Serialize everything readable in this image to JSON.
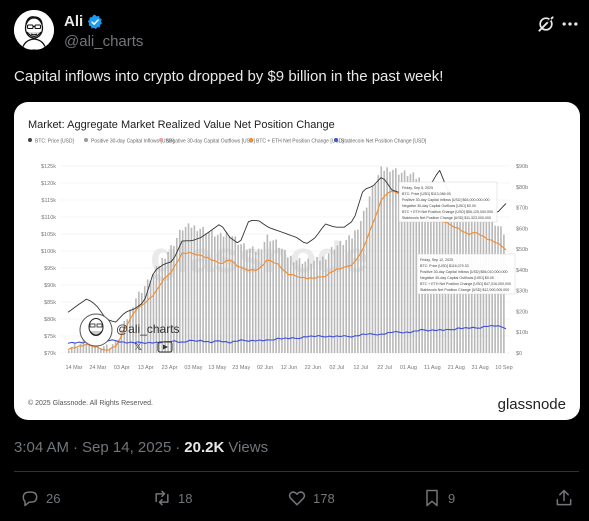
{
  "author": {
    "display_name": "Ali",
    "handle": "@ali_charts"
  },
  "tweet": {
    "text": "Capital inflows into crypto dropped by $9 billion in the past week!",
    "time": "3:04 AM",
    "date": "Sep 14, 2025",
    "views_count": "20.2K",
    "views_label": "Views"
  },
  "actions": {
    "replies": "26",
    "reposts": "18",
    "likes": "178",
    "bookmarks": "9"
  },
  "card": {
    "watermark_logo": "glassnode",
    "overlay_handle": "@ali_charts",
    "copyright": "© 2025 Glassnode. All Rights Reserved.",
    "brand": "glassnode"
  },
  "chart_data": {
    "type": "line",
    "title": "Market: Aggregate Market Realized Value Net Position Change",
    "legend": [
      {
        "label": "BTC: Price [USD]",
        "color": "#444444"
      },
      {
        "label": "Positive 30-day Capital Inflows [USD]",
        "color": "#9a9a9a"
      },
      {
        "label": "Negative 30-day Capital Outflows [USD]",
        "color": "#e8a0a0"
      },
      {
        "label": "BTC + ETH Net Position Change [USD]",
        "color": "#f58a2c"
      },
      {
        "label": "Stablecoin Net Position Change [USD]",
        "color": "#3f4fd8"
      }
    ],
    "x_ticks": [
      "14 Mar",
      "24 Mar",
      "03 Apr",
      "13 Apr",
      "23 Apr",
      "03 May",
      "13 May",
      "23 May",
      "02 Jun",
      "12 Jun",
      "22 Jun",
      "02 Jul",
      "12 Jul",
      "22 Jul",
      "01 Aug",
      "11 Aug",
      "21 Aug",
      "31 Aug",
      "10 Sep"
    ],
    "y_left_ticks": [
      "$125k",
      "$120k",
      "$115k",
      "$110k",
      "$105k",
      "$100k",
      "$95k",
      "$90k",
      "$85k",
      "$80k",
      "$75k",
      "$70k"
    ],
    "y_left_lim": [
      70000,
      125000
    ],
    "y_right_ticks": [
      "$90b",
      "$80b",
      "$70b",
      "$60b",
      "$50b",
      "$40b",
      "$30b",
      "$20b",
      "$10b",
      "$0"
    ],
    "y_right_lim": [
      0,
      90
    ],
    "btc_price": [
      82,
      84,
      86,
      84,
      80,
      79,
      82,
      83,
      85,
      94,
      96,
      97,
      103,
      103,
      104,
      106,
      108,
      104,
      102,
      109,
      109,
      107,
      106,
      105,
      104,
      102,
      104,
      108,
      107,
      107,
      109,
      118,
      119,
      122,
      118,
      117,
      115,
      118,
      119,
      124,
      117,
      113,
      111,
      110,
      112,
      111,
      114
    ],
    "btc_eth_net_change": [
      2,
      3,
      4,
      3,
      1,
      3,
      12,
      20,
      24,
      28,
      35,
      40,
      48,
      48,
      47,
      45,
      43,
      45,
      41,
      40,
      40,
      45,
      43,
      38,
      37,
      36,
      36,
      37,
      40,
      41,
      43,
      50,
      62,
      75,
      78,
      76,
      74,
      70,
      68,
      64,
      62,
      60,
      57,
      58,
      55,
      53,
      50
    ],
    "positive_inflows": [
      3,
      4,
      6,
      5,
      3,
      5,
      15,
      26,
      32,
      38,
      46,
      52,
      60,
      61,
      60,
      58,
      56,
      58,
      53,
      50,
      49,
      56,
      53,
      47,
      45,
      44,
      44,
      46,
      51,
      53,
      56,
      65,
      78,
      88,
      89,
      87,
      86,
      84,
      80,
      76,
      74,
      72,
      68,
      70,
      67,
      63,
      58
    ],
    "stablecoin_net_change": [
      5,
      5,
      5,
      6,
      6,
      6,
      5,
      5,
      5,
      5,
      5,
      6,
      5,
      6,
      6,
      5,
      6,
      5,
      6,
      6,
      6,
      6,
      7,
      7,
      7,
      8,
      8,
      8,
      8,
      8,
      8,
      9,
      9,
      9,
      10,
      10,
      10,
      11,
      11,
      11,
      11,
      12,
      12,
      12,
      13,
      13,
      12
    ],
    "annotations": [
      "Friday, Sep 5, 2025",
      "BTC: Price [USD]   $113,086.93",
      "Positive 30-day Capital Inflows [USD]   $65,000,000,000",
      "Negative 30-day Capital Outflows [USD]   $0.00",
      "BTC + ETH Net Position Change [USD]   $56,125,000,000",
      "Stablecoin Net Position Change [USD]   $11,323,000,000",
      "Friday, Sep 12, 2025",
      "BTC: Price [USD]   $116,079.33",
      "Positive 30-day Capital Inflows [USD]   $56,010,000,000",
      "Negative 30-day Capital Outflows [USD]   $0.00",
      "BTC + ETH Net Position Change [USD]   $47,016,000,000",
      "Stablecoin Net Position Change [USD]   $12,000,000,000"
    ]
  }
}
